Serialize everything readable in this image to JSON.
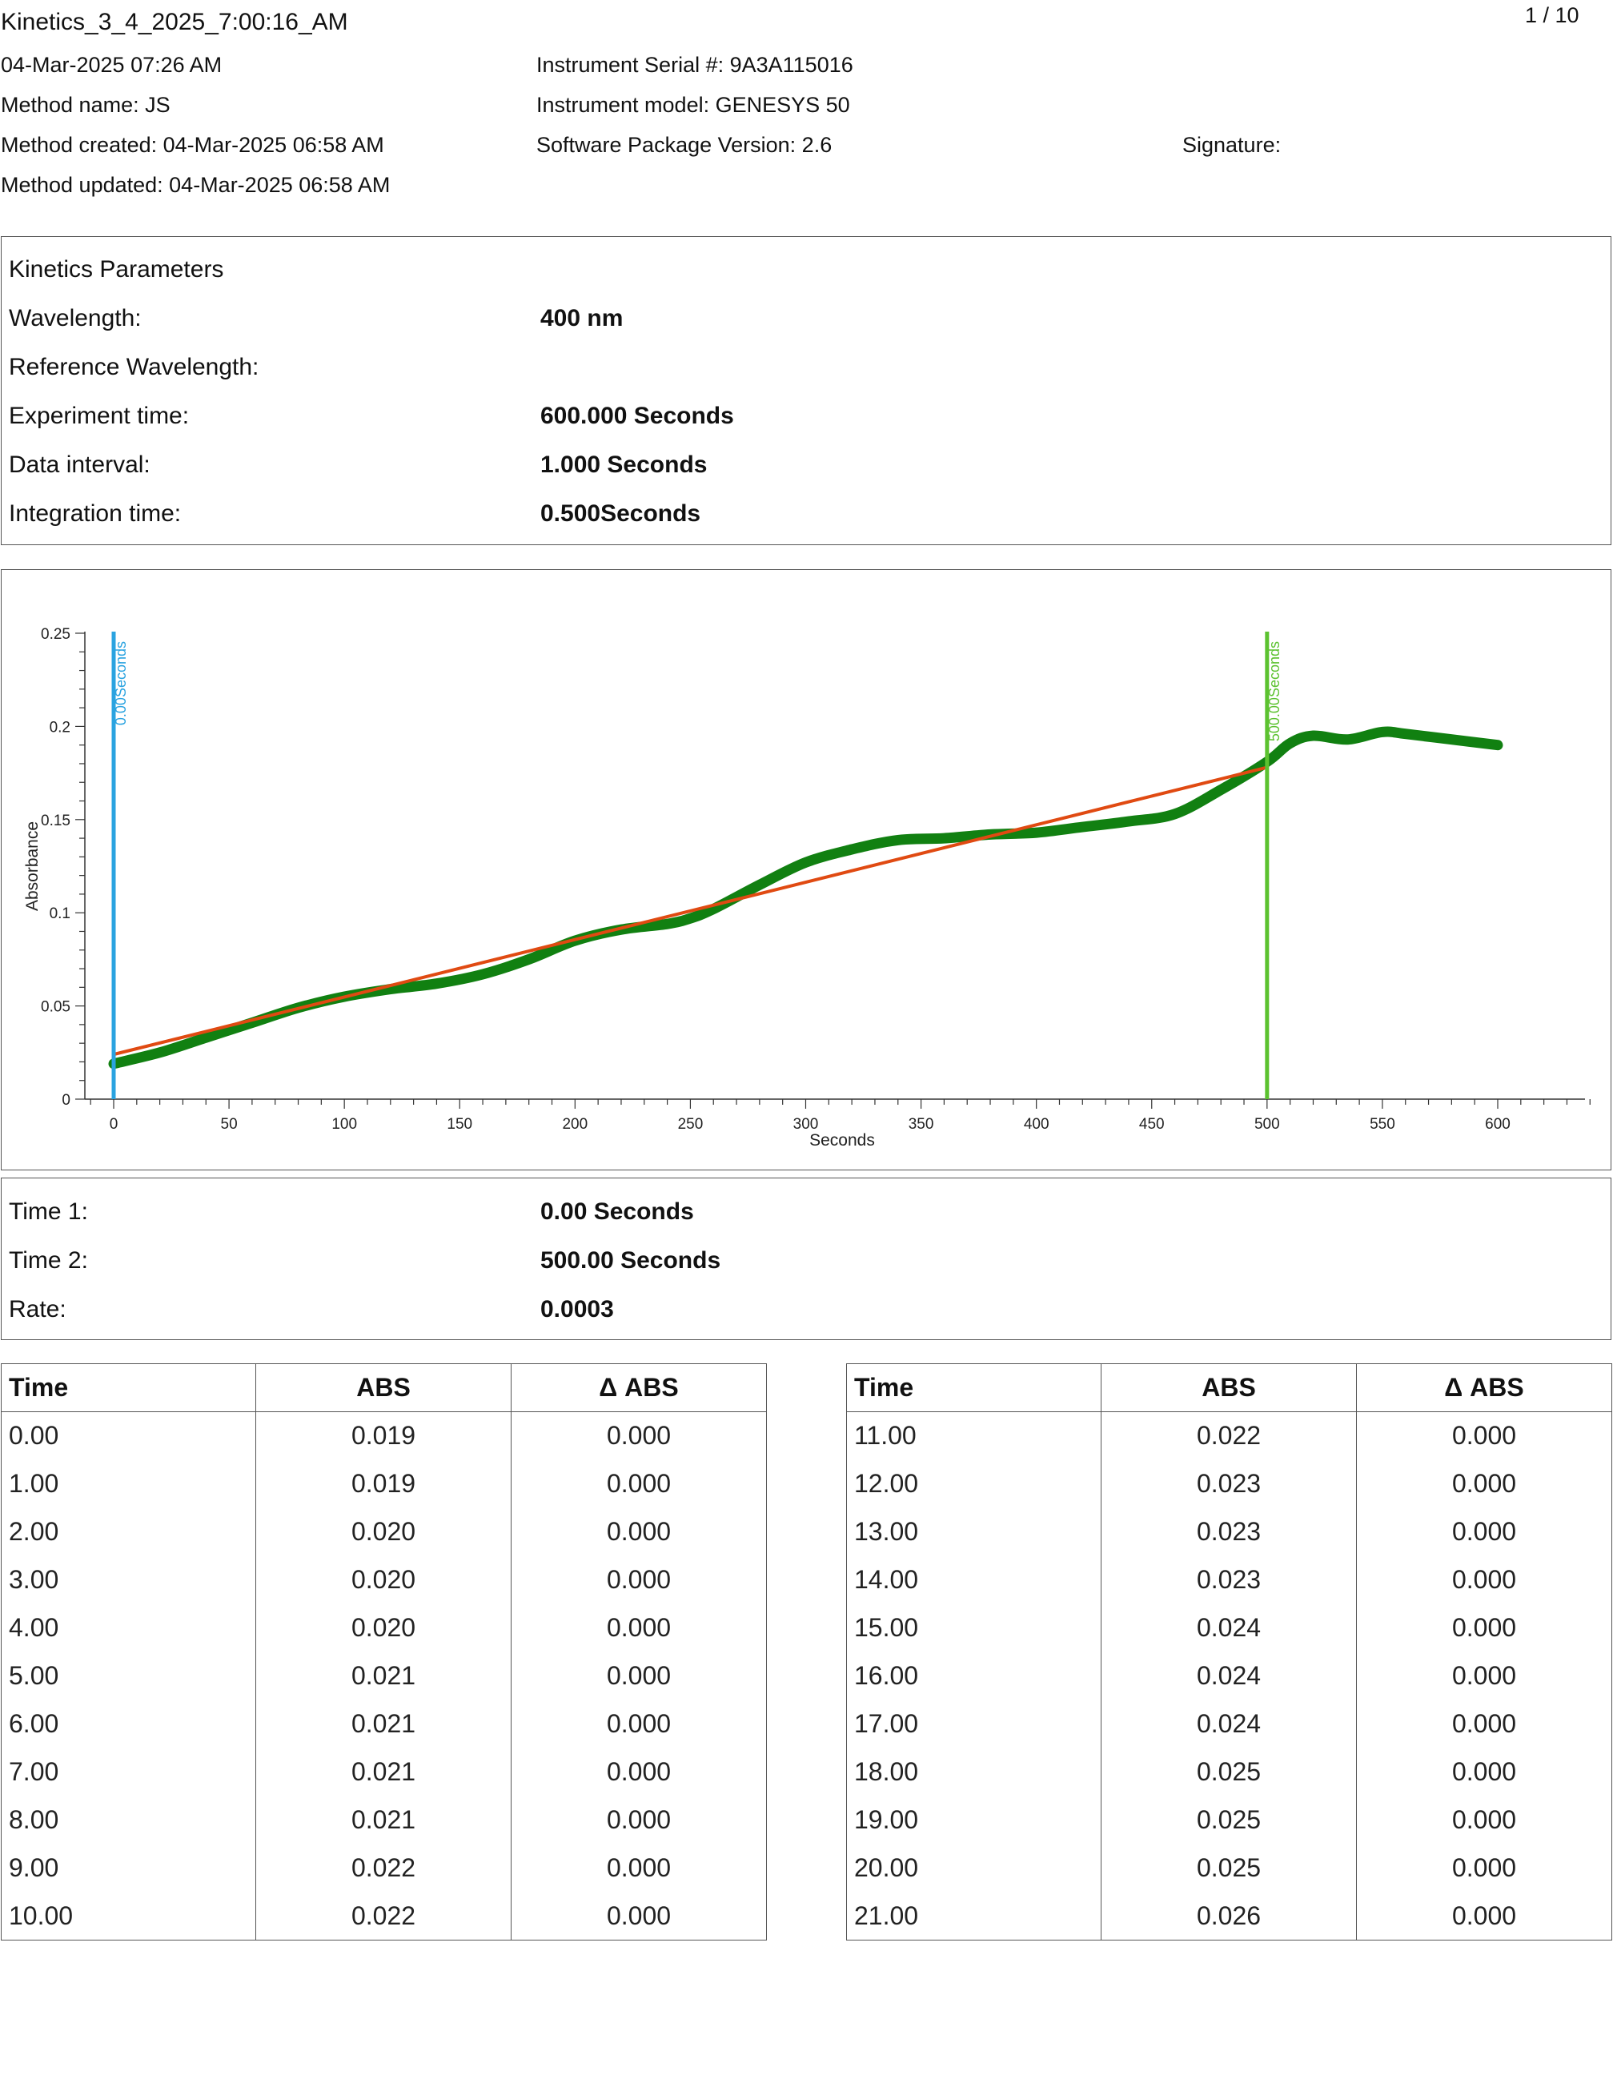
{
  "header": {
    "report_title": "Kinetics_3_4_2025_7:00:16_AM",
    "page_indicator": "1 / 10",
    "datetime": "04-Mar-2025 07:26 AM",
    "method_name": "Method name: JS",
    "method_created": "Method created: 04-Mar-2025 06:58 AM",
    "method_updated": "Method updated: 04-Mar-2025 06:58 AM",
    "instrument_serial": "Instrument Serial #: 9A3A115016",
    "instrument_model": "Instrument model: GENESYS 50",
    "software_version": "Software Package Version: 2.6",
    "signature_label": "Signature:"
  },
  "parameters": {
    "heading": "Kinetics Parameters",
    "rows": [
      {
        "label": "Wavelength:",
        "value": "400 nm"
      },
      {
        "label": "Reference Wavelength:",
        "value": ""
      },
      {
        "label": "Experiment time:",
        "value": "600.000 Seconds"
      },
      {
        "label": "Data interval:",
        "value": "1.000 Seconds"
      },
      {
        "label": "Integration time:",
        "value": "0.500Seconds"
      }
    ]
  },
  "results": {
    "rows": [
      {
        "label": "Time 1:",
        "value": "0.00 Seconds"
      },
      {
        "label": "Time 2:",
        "value": "500.00 Seconds"
      },
      {
        "label": "Rate:",
        "value": "0.0003"
      }
    ]
  },
  "colors": {
    "data_series": "#118011",
    "fit_line": "#e04a12",
    "time1_marker": "#2aa3e0",
    "time2_marker": "#5cc230",
    "axis": "#333333"
  },
  "chart_data": {
    "type": "line",
    "xlabel": "Seconds",
    "ylabel": "Absorbance",
    "xlim": [
      -10,
      640
    ],
    "ylim": [
      0,
      0.25
    ],
    "x_ticks": [
      0,
      50,
      100,
      150,
      200,
      250,
      300,
      350,
      400,
      450,
      500,
      550,
      600
    ],
    "y_ticks": [
      0,
      0.05,
      0.1,
      0.15,
      0.2,
      0.25
    ],
    "y_tick_labels": [
      "0",
      "0.05",
      "0.1",
      "0.15",
      "0.2",
      "0.25"
    ],
    "grid": false,
    "legend": "none",
    "series": [
      {
        "style": "thick line",
        "x": [
          0,
          20,
          40,
          60,
          80,
          100,
          120,
          140,
          160,
          180,
          200,
          220,
          240,
          250,
          260,
          280,
          300,
          320,
          340,
          360,
          380,
          400,
          420,
          440,
          460,
          480,
          500,
          510,
          520,
          535,
          550,
          560,
          580,
          600
        ],
        "y": [
          0.019,
          0.025,
          0.033,
          0.041,
          0.049,
          0.055,
          0.059,
          0.062,
          0.067,
          0.075,
          0.085,
          0.091,
          0.094,
          0.097,
          0.102,
          0.115,
          0.127,
          0.134,
          0.139,
          0.14,
          0.142,
          0.143,
          0.146,
          0.149,
          0.153,
          0.166,
          0.181,
          0.191,
          0.195,
          0.193,
          0.197,
          0.196,
          0.193,
          0.19
        ]
      },
      {
        "style": "fit line",
        "x": [
          0,
          500
        ],
        "y": [
          0.024,
          0.178
        ]
      }
    ],
    "markers": [
      {
        "x": 0,
        "label": "0.00Seconds"
      },
      {
        "x": 500,
        "label": "500.00Seconds"
      }
    ]
  },
  "table_headers": {
    "time": "Time",
    "abs": "ABS",
    "dabs": "Δ ABS"
  },
  "table_left": [
    [
      "0.00",
      "0.019",
      "0.000"
    ],
    [
      "1.00",
      "0.019",
      "0.000"
    ],
    [
      "2.00",
      "0.020",
      "0.000"
    ],
    [
      "3.00",
      "0.020",
      "0.000"
    ],
    [
      "4.00",
      "0.020",
      "0.000"
    ],
    [
      "5.00",
      "0.021",
      "0.000"
    ],
    [
      "6.00",
      "0.021",
      "0.000"
    ],
    [
      "7.00",
      "0.021",
      "0.000"
    ],
    [
      "8.00",
      "0.021",
      "0.000"
    ],
    [
      "9.00",
      "0.022",
      "0.000"
    ],
    [
      "10.00",
      "0.022",
      "0.000"
    ]
  ],
  "table_right": [
    [
      "11.00",
      "0.022",
      "0.000"
    ],
    [
      "12.00",
      "0.023",
      "0.000"
    ],
    [
      "13.00",
      "0.023",
      "0.000"
    ],
    [
      "14.00",
      "0.023",
      "0.000"
    ],
    [
      "15.00",
      "0.024",
      "0.000"
    ],
    [
      "16.00",
      "0.024",
      "0.000"
    ],
    [
      "17.00",
      "0.024",
      "0.000"
    ],
    [
      "18.00",
      "0.025",
      "0.000"
    ],
    [
      "19.00",
      "0.025",
      "0.000"
    ],
    [
      "20.00",
      "0.025",
      "0.000"
    ],
    [
      "21.00",
      "0.026",
      "0.000"
    ]
  ]
}
